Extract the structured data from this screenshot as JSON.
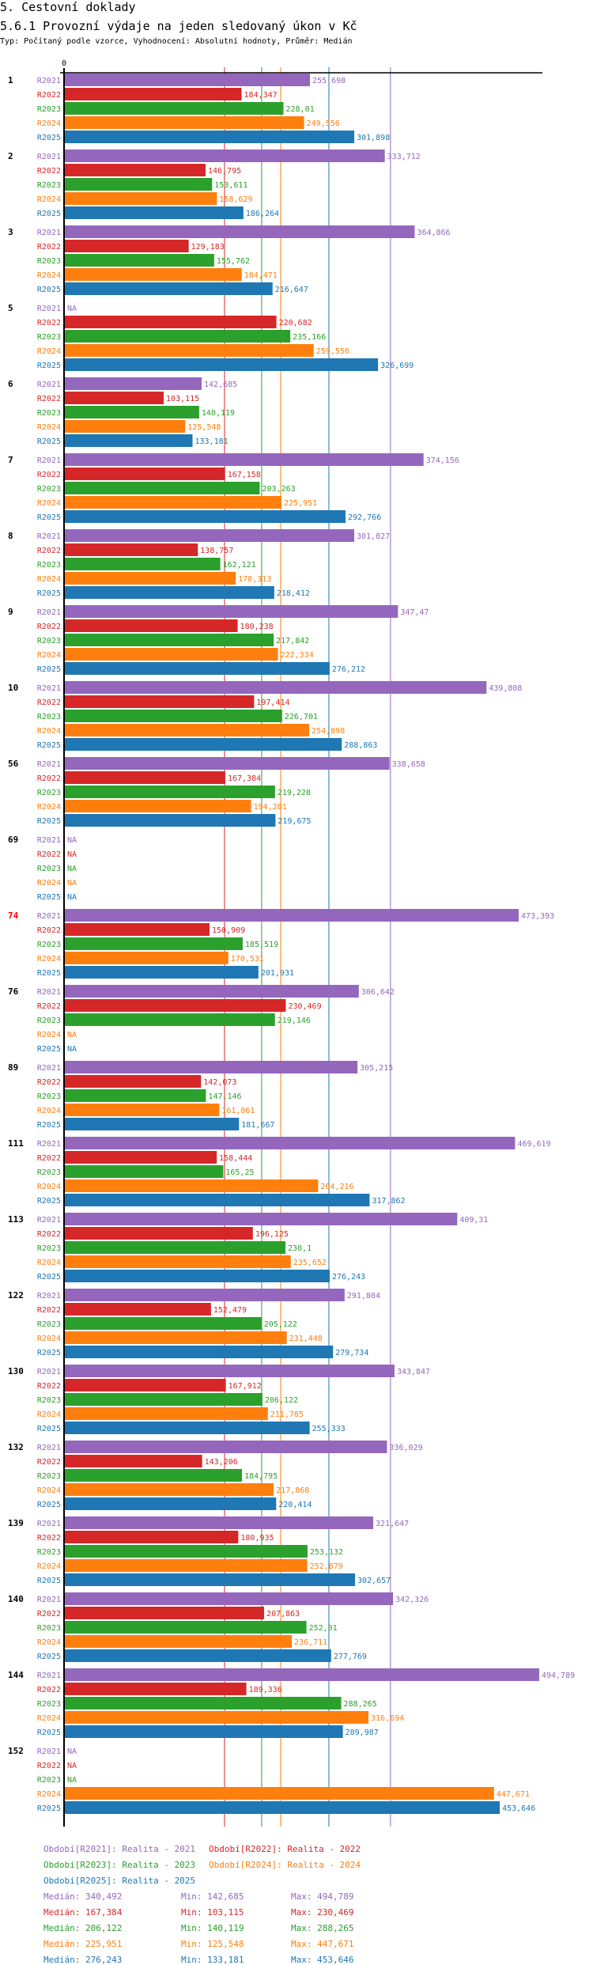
{
  "section_title": "5. Cestovní doklady",
  "chart_title": "5.6.1 Provozní výdaje na jeden sledovaný úkon v Kč",
  "chart_subtitle": "Typ: Počítaný podle vzorce, Vyhodnocení: Absolutní hodnoty, Průměr: Medián",
  "chart_data": {
    "type": "bar",
    "orientation": "horizontal",
    "title": "5.6.1 Provozní výdaje na jeden sledovaný úkon v Kč",
    "xlabel": "",
    "ylabel": "",
    "x_tick_labels": [
      "0"
    ],
    "xlim": [
      0,
      500
    ],
    "grid": false,
    "highlighted_category": "74",
    "series_names": [
      "R2021",
      "R2022",
      "R2023",
      "R2024",
      "R2025"
    ],
    "colors": {
      "R2021": "#9467bd",
      "R2022": "#d62728",
      "R2023": "#2ca02c",
      "R2024": "#ff7f0e",
      "R2025": "#1f77b4"
    },
    "groups": [
      {
        "category": "1",
        "values": [
          255.698,
          184.347,
          228.01,
          249.556,
          301.898
        ]
      },
      {
        "category": "2",
        "values": [
          333.712,
          146.795,
          153.611,
          158.629,
          186.264
        ]
      },
      {
        "category": "3",
        "values": [
          364.866,
          129.183,
          155.762,
          184.471,
          216.647
        ]
      },
      {
        "category": "5",
        "values": [
          null,
          220.682,
          235.166,
          259.556,
          326.699
        ]
      },
      {
        "category": "6",
        "values": [
          142.685,
          103.115,
          140.119,
          125.548,
          133.181
        ]
      },
      {
        "category": "7",
        "values": [
          374.156,
          167.158,
          203.263,
          225.951,
          292.766
        ]
      },
      {
        "category": "8",
        "values": [
          301.827,
          138.757,
          162.121,
          178.313,
          218.412
        ]
      },
      {
        "category": "9",
        "values": [
          347.47,
          180.238,
          217.842,
          222.334,
          276.212
        ]
      },
      {
        "category": "10",
        "values": [
          439.808,
          197.414,
          226.701,
          254.898,
          288.863
        ]
      },
      {
        "category": "56",
        "values": [
          338.658,
          167.384,
          219.228,
          194.281,
          219.675
        ]
      },
      {
        "category": "69",
        "values": [
          null,
          null,
          null,
          null,
          null
        ]
      },
      {
        "category": "74",
        "values": [
          473.393,
          150.909,
          185.519,
          170.531,
          201.931
        ]
      },
      {
        "category": "76",
        "values": [
          306.642,
          230.469,
          219.146,
          null,
          null
        ]
      },
      {
        "category": "89",
        "values": [
          305.215,
          142.073,
          147.146,
          161.061,
          181.667
        ]
      },
      {
        "category": "111",
        "values": [
          469.619,
          158.444,
          165.25,
          264.216,
          317.862
        ]
      },
      {
        "category": "113",
        "values": [
          409.31,
          196.125,
          230.1,
          235.652,
          276.243
        ]
      },
      {
        "category": "122",
        "values": [
          291.804,
          152.479,
          205.122,
          231.448,
          279.734
        ]
      },
      {
        "category": "130",
        "values": [
          343.847,
          167.912,
          206.122,
          211.785,
          255.333
        ]
      },
      {
        "category": "132",
        "values": [
          336.029,
          143.206,
          184.795,
          217.868,
          220.414
        ]
      },
      {
        "category": "139",
        "values": [
          321.647,
          180.935,
          253.132,
          252.879,
          302.657
        ]
      },
      {
        "category": "140",
        "values": [
          342.326,
          207.863,
          252.01,
          236.711,
          277.769
        ]
      },
      {
        "category": "144",
        "values": [
          494.789,
          189.336,
          288.265,
          316.694,
          289.987
        ]
      },
      {
        "category": "152",
        "values": [
          null,
          null,
          null,
          447.671,
          453.646
        ]
      }
    ],
    "na_label": "NA",
    "median_lines": {
      "R2021": 340.492,
      "R2022": 167.384,
      "R2023": 206.122,
      "R2024": 225.951,
      "R2025": 276.243
    },
    "legend": [
      {
        "series": "R2021",
        "text": "Období[R2021]: Realita - 2021"
      },
      {
        "series": "R2022",
        "text": "Období[R2022]: Realita - 2022"
      },
      {
        "series": "R2023",
        "text": "Období[R2023]: Realita - 2023"
      },
      {
        "series": "R2024",
        "text": "Období[R2024]: Realita - 2024"
      },
      {
        "series": "R2025",
        "text": "Období[R2025]: Realita - 2025"
      }
    ],
    "legend_placement": "bottom",
    "stats": [
      {
        "series": "R2021",
        "median": "Medián: 340,492",
        "min": "Min: 142,685",
        "max": "Max: 494,789"
      },
      {
        "series": "R2022",
        "median": "Medián: 167,384",
        "min": "Min: 103,115",
        "max": "Max: 230,469"
      },
      {
        "series": "R2023",
        "median": "Medián: 206,122",
        "min": "Min: 140,119",
        "max": "Max: 288,265"
      },
      {
        "series": "R2024",
        "median": "Medián: 225,951",
        "min": "Min: 125,548",
        "max": "Max: 447,671"
      },
      {
        "series": "R2025",
        "median": "Medián: 276,243",
        "min": "Min: 133,181",
        "max": "Max: 453,646"
      }
    ]
  }
}
